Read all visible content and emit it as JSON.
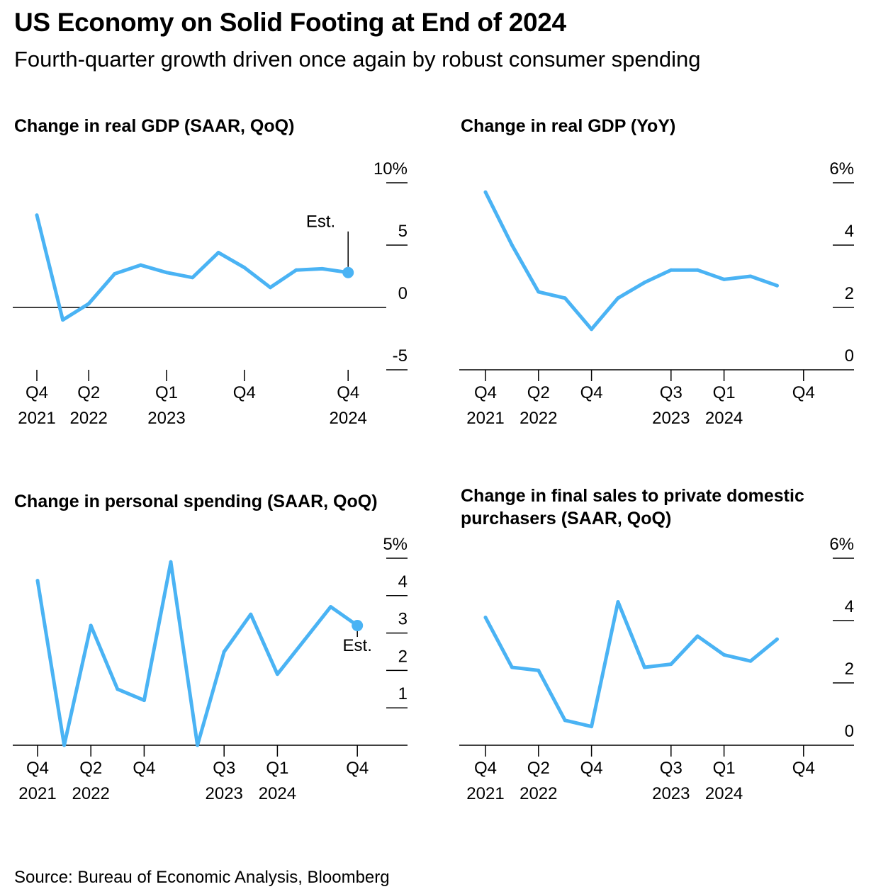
{
  "title": "US Economy on Solid Footing at End of 2024",
  "subtitle": "Fourth-quarter growth driven once again by robust consumer spending",
  "source": "Source: Bureau of Economic Analysis, Bloomberg",
  "colors": {
    "line": "#4ab3f4",
    "axis": "#000000"
  },
  "chart_data": [
    {
      "id": "gdp-qoq",
      "type": "line",
      "title": "Change in real GDP (SAAR, QoQ)",
      "x": [
        "Q4 2021",
        "Q1 2022",
        "Q2 2022",
        "Q3 2022",
        "Q4 2022",
        "Q1 2023",
        "Q2 2023",
        "Q3 2023",
        "Q4 2023",
        "Q1 2024",
        "Q2 2024",
        "Q3 2024",
        "Q4 2024"
      ],
      "values": [
        7.4,
        -1.0,
        0.3,
        2.7,
        3.4,
        2.8,
        2.4,
        4.4,
        3.2,
        1.6,
        3.0,
        3.1,
        2.8
      ],
      "ylim": [
        -5,
        10
      ],
      "yticks": [
        -5,
        0,
        5,
        10
      ],
      "ytick_labels": [
        "-5",
        "0",
        "5",
        "10%"
      ],
      "zero_line": true,
      "xtick_positions": [
        0,
        2,
        5,
        8,
        12
      ],
      "xtick_labels": [
        [
          "Q4",
          "2021"
        ],
        [
          "Q2",
          "2022"
        ],
        [
          "Q1",
          "2023"
        ],
        [
          "Q4",
          ""
        ],
        [
          "Q4",
          "2024"
        ]
      ],
      "annotation": {
        "text": "Est.",
        "index": 12
      }
    },
    {
      "id": "gdp-yoy",
      "type": "line",
      "title": "Change in real GDP (YoY)",
      "x": [
        "Q4 2021",
        "Q1 2022",
        "Q2 2022",
        "Q3 2022",
        "Q4 2022",
        "Q1 2023",
        "Q2 2023",
        "Q3 2023",
        "Q4 2023",
        "Q1 2024",
        "Q2 2024",
        "Q3 2024"
      ],
      "values": [
        5.7,
        4.0,
        2.5,
        2.3,
        1.3,
        2.3,
        2.8,
        3.2,
        3.2,
        2.9,
        3.0,
        2.7
      ],
      "ylim": [
        0,
        6
      ],
      "yticks": [
        0,
        2,
        4,
        6
      ],
      "ytick_labels": [
        "0",
        "2",
        "4",
        "6%"
      ],
      "zero_line": false,
      "xtick_positions": [
        0,
        2,
        4,
        7,
        9,
        12
      ],
      "xtick_labels": [
        [
          "Q4",
          "2021"
        ],
        [
          "Q2",
          "2022"
        ],
        [
          "Q4",
          ""
        ],
        [
          "Q3",
          "2023"
        ],
        [
          "Q1",
          "2024"
        ],
        [
          "Q4",
          ""
        ]
      ]
    },
    {
      "id": "personal-spending",
      "type": "line",
      "title": "Change in personal spending (SAAR, QoQ)",
      "x": [
        "Q4 2021",
        "Q1 2022",
        "Q2 2022",
        "Q3 2022",
        "Q4 2022",
        "Q1 2023",
        "Q2 2023",
        "Q3 2023",
        "Q4 2023",
        "Q1 2024",
        "Q2 2024",
        "Q3 2024",
        "Q4 2024"
      ],
      "values": [
        4.4,
        0.0,
        3.2,
        1.5,
        1.2,
        4.9,
        0.0,
        2.5,
        3.5,
        1.9,
        2.8,
        3.7,
        3.2
      ],
      "ylim": [
        0,
        5
      ],
      "yticks": [
        1,
        2,
        3,
        4,
        5
      ],
      "ytick_labels": [
        "1",
        "2",
        "3",
        "4",
        "5%"
      ],
      "zero_line": false,
      "xtick_positions": [
        0,
        2,
        4,
        7,
        9,
        12
      ],
      "xtick_labels": [
        [
          "Q4",
          "2021"
        ],
        [
          "Q2",
          "2022"
        ],
        [
          "Q4",
          ""
        ],
        [
          "Q3",
          "2023"
        ],
        [
          "Q1",
          "2024"
        ],
        [
          "Q4",
          ""
        ]
      ],
      "annotation": {
        "text": "Est.",
        "index": 12
      }
    },
    {
      "id": "final-sales",
      "type": "line",
      "title": "Change in final sales to private domestic purchasers (SAAR, QoQ)",
      "x": [
        "Q4 2021",
        "Q1 2022",
        "Q2 2022",
        "Q3 2022",
        "Q4 2022",
        "Q1 2023",
        "Q2 2023",
        "Q3 2023",
        "Q4 2023",
        "Q1 2024",
        "Q2 2024",
        "Q3 2024"
      ],
      "values": [
        4.1,
        2.5,
        2.4,
        0.8,
        0.6,
        4.6,
        2.5,
        2.6,
        3.5,
        2.9,
        2.7,
        3.4
      ],
      "ylim": [
        0,
        6
      ],
      "yticks": [
        0,
        2,
        4,
        6
      ],
      "ytick_labels": [
        "0",
        "2",
        "4",
        "6%"
      ],
      "zero_line": false,
      "xtick_positions": [
        0,
        2,
        4,
        7,
        9,
        12
      ],
      "xtick_labels": [
        [
          "Q4",
          "2021"
        ],
        [
          "Q2",
          "2022"
        ],
        [
          "Q4",
          ""
        ],
        [
          "Q3",
          "2023"
        ],
        [
          "Q1",
          "2024"
        ],
        [
          "Q4",
          ""
        ]
      ]
    }
  ]
}
